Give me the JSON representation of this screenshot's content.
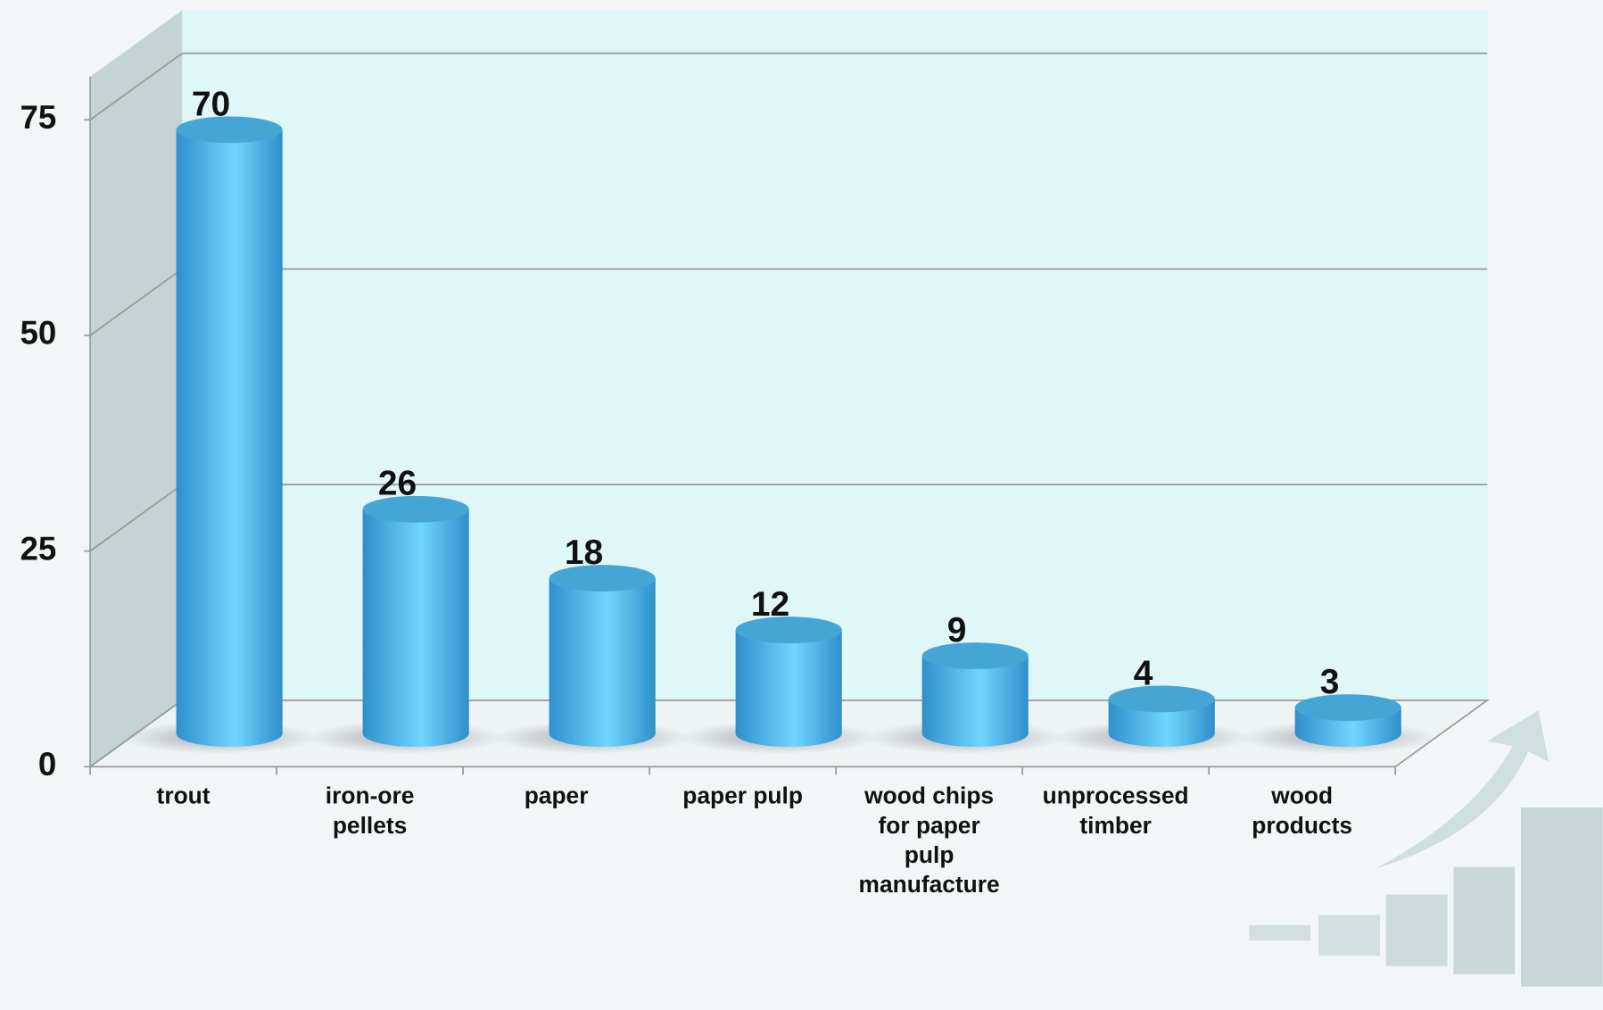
{
  "chart_data": {
    "type": "bar",
    "categories": [
      "trout",
      "iron-ore pellets",
      "paper",
      "paper pulp",
      "wood chips for paper pulp manufacture",
      "unprocessed timber",
      "wood products"
    ],
    "values": [
      70,
      26,
      18,
      12,
      9,
      4,
      3
    ],
    "color": "#4cc3f5",
    "ylim": [
      0,
      80
    ],
    "yticks": [
      0,
      25,
      50,
      75
    ],
    "grid": true
  }
}
